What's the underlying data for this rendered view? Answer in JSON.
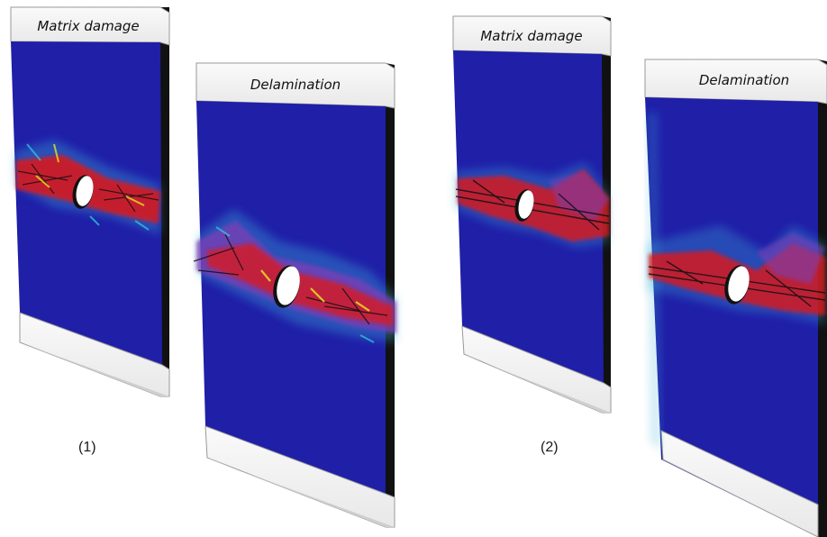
{
  "panels": [
    {
      "id": "1",
      "label": "(1)",
      "specimens": [
        {
          "caption": "Matrix damage"
        },
        {
          "caption": "Delamination"
        }
      ]
    },
    {
      "id": "2",
      "label": "(2)",
      "specimens": [
        {
          "caption": "Matrix damage"
        },
        {
          "caption": "Delamination"
        }
      ]
    }
  ],
  "colors": {
    "background": "#ffffff",
    "undamaged": "#1f1fa8",
    "damage_red": "#e01818",
    "damage_purple": "#7a3fb5",
    "damage_yellow": "#e8e020",
    "damage_cyan": "#2bd0e0",
    "edge_dark": "#111111",
    "tab_fill": "#f2f2f2",
    "tab_stroke": "#9a9a9a"
  }
}
